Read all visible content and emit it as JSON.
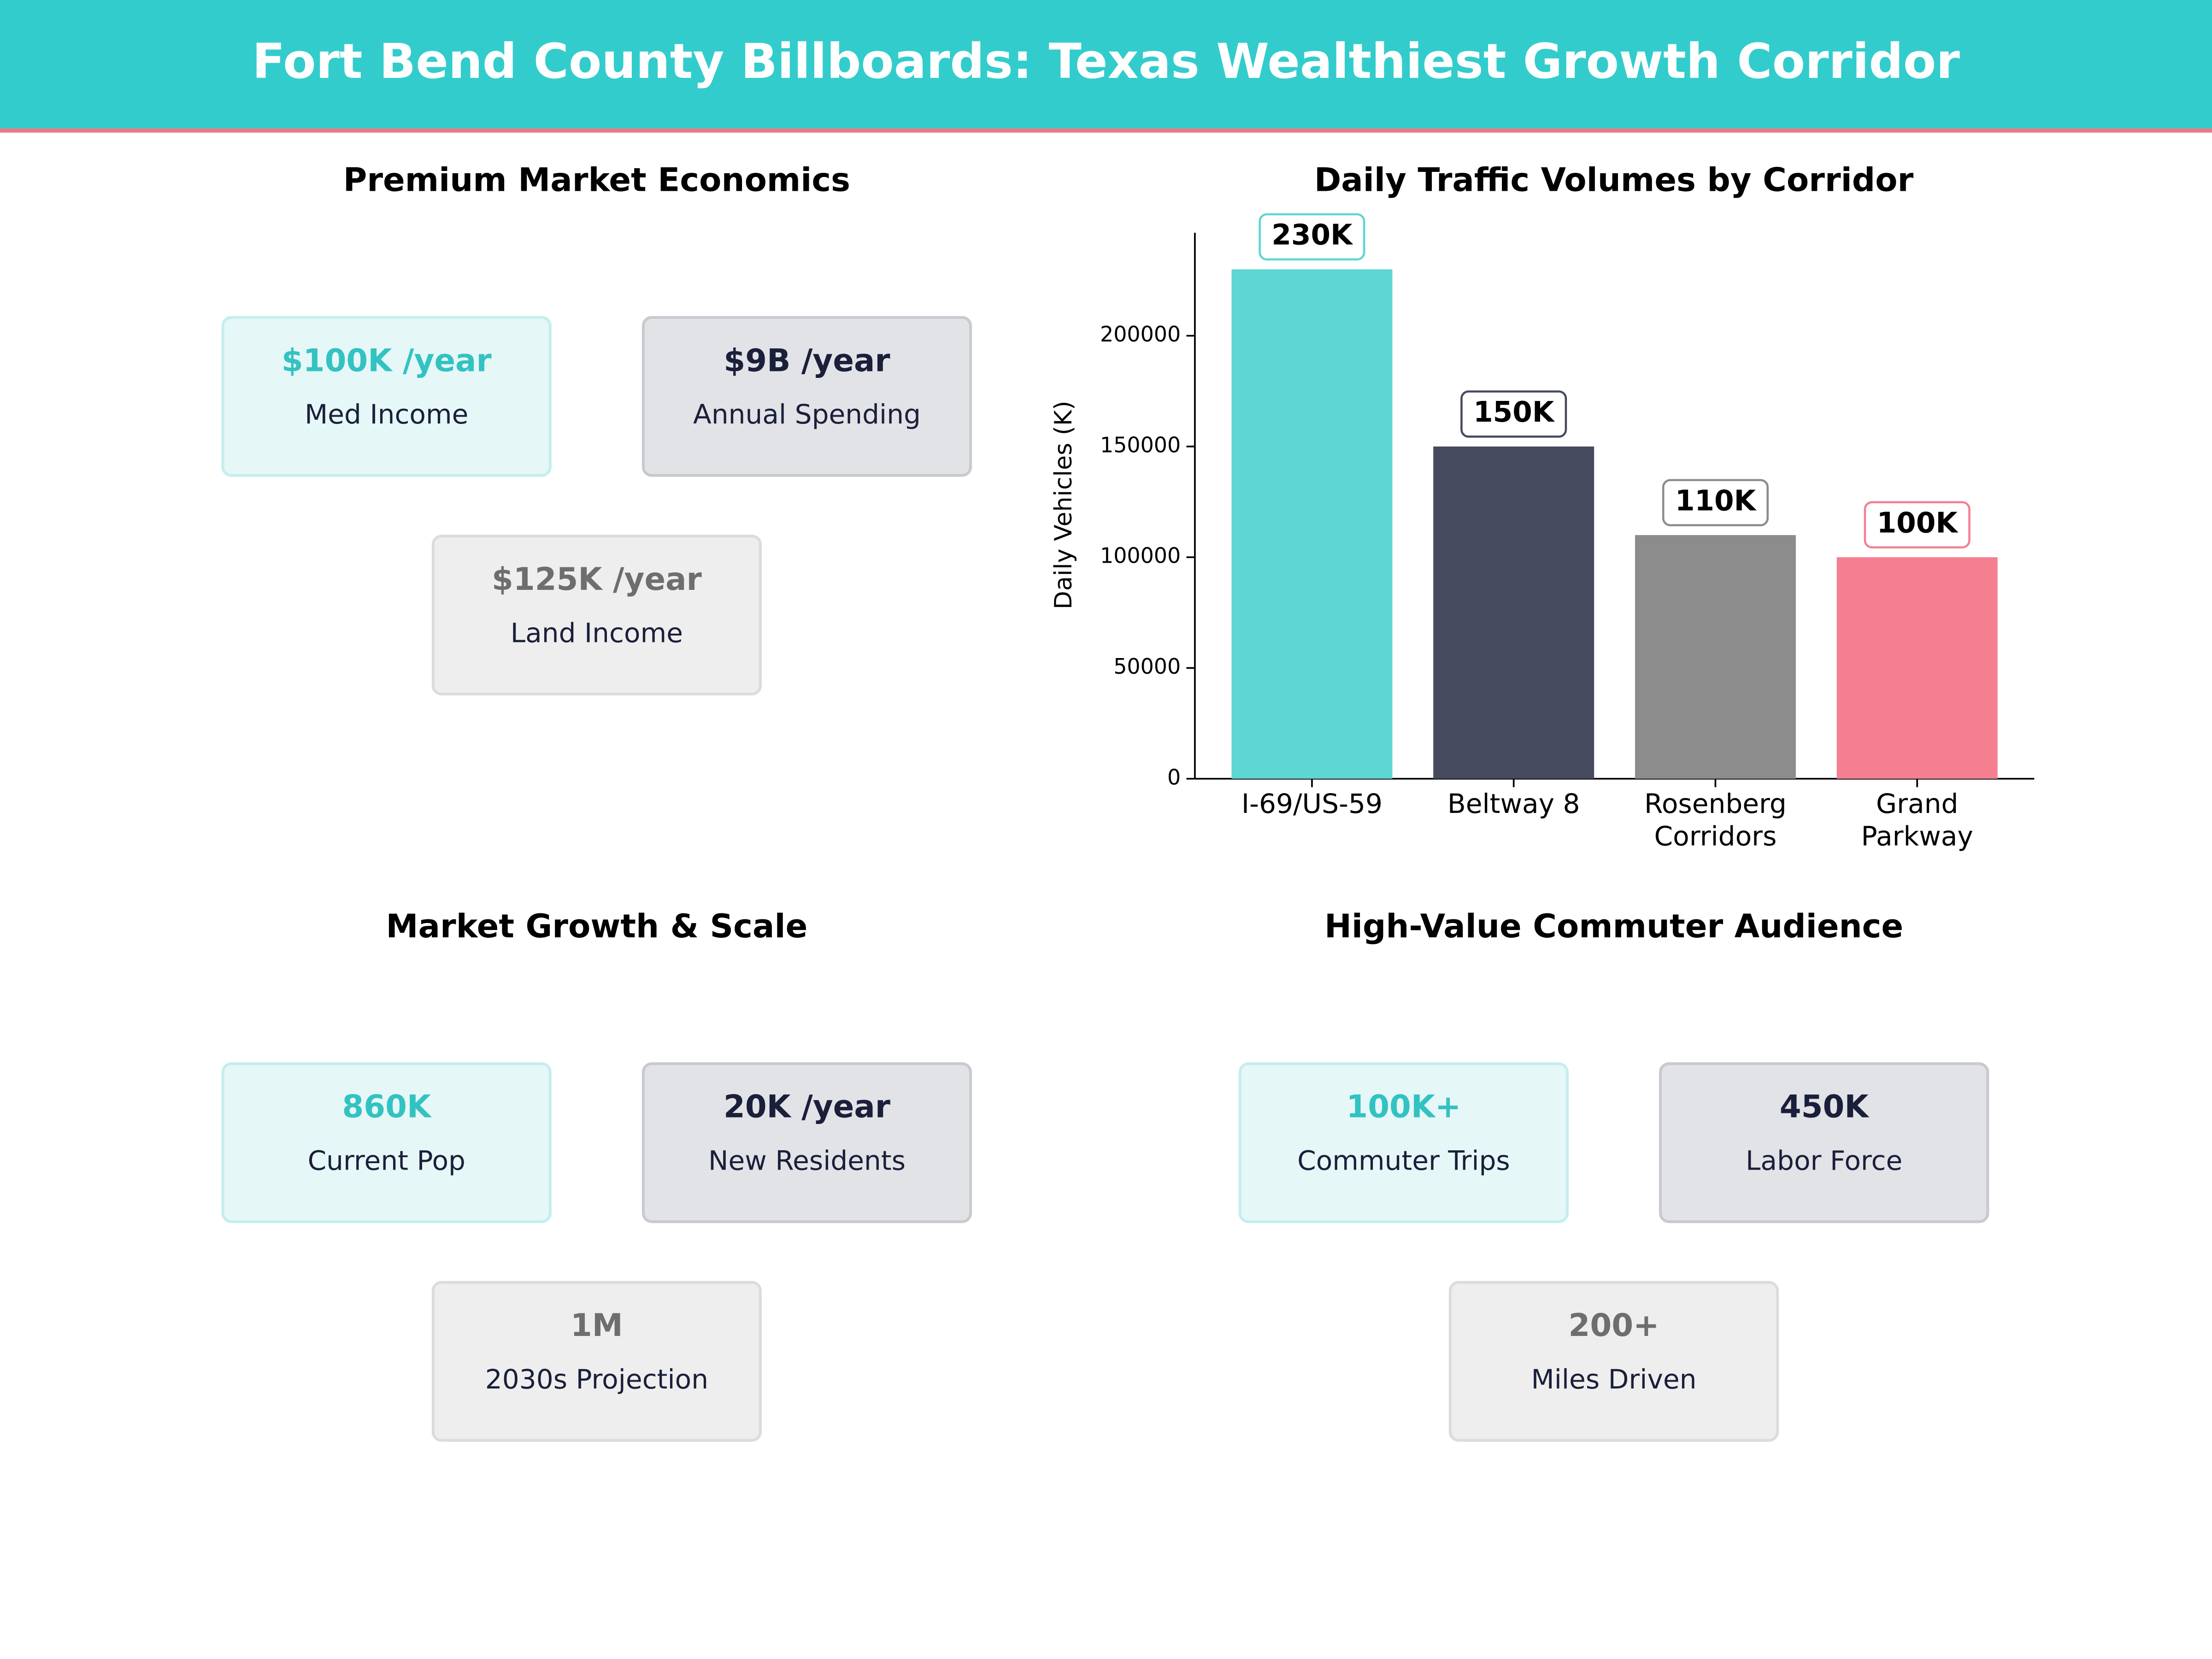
{
  "header": {
    "title": "Fort Bend County Billboards: Texas Wealthiest Growth Corridor"
  },
  "panels": [
    {
      "title": "Premium Market Economics",
      "cards": [
        {
          "value": "$100K /year",
          "label": "Med Income"
        },
        {
          "value": "$9B /year",
          "label": "Annual Spending"
        },
        {
          "value": "$125K /year",
          "label": "Land Income"
        }
      ]
    },
    {
      "title": "Market Growth & Scale",
      "cards": [
        {
          "value": "860K",
          "label": "Current Pop"
        },
        {
          "value": "20K /year",
          "label": "New Residents"
        },
        {
          "value": "1M",
          "label": "2030s Projection"
        }
      ]
    },
    {
      "title": "High-Value Commuter Audience",
      "cards": [
        {
          "value": "100K+",
          "label": "Commuter Trips"
        },
        {
          "value": "450K",
          "label": "Labor Force"
        },
        {
          "value": "200+",
          "label": "Miles Driven"
        }
      ]
    }
  ],
  "chart_data": {
    "type": "bar",
    "title": "Daily Traffic Volumes by Corridor",
    "y_label": "Daily Vehicles (K)",
    "categories": [
      "I-69/US-59",
      "Beltway 8",
      "Rosenberg\nCorridors",
      "Grand\nParkway"
    ],
    "values": [
      230000,
      150000,
      110000,
      100000
    ],
    "value_labels": [
      "230K",
      "150K",
      "110K",
      "100K"
    ],
    "colors": [
      "#5dd6d4",
      "#464a5e",
      "#8c8c8c",
      "#f47f91"
    ],
    "ylim": [
      0,
      246500
    ],
    "yticks": [
      0,
      50000,
      100000,
      150000,
      200000
    ],
    "grid": false
  }
}
